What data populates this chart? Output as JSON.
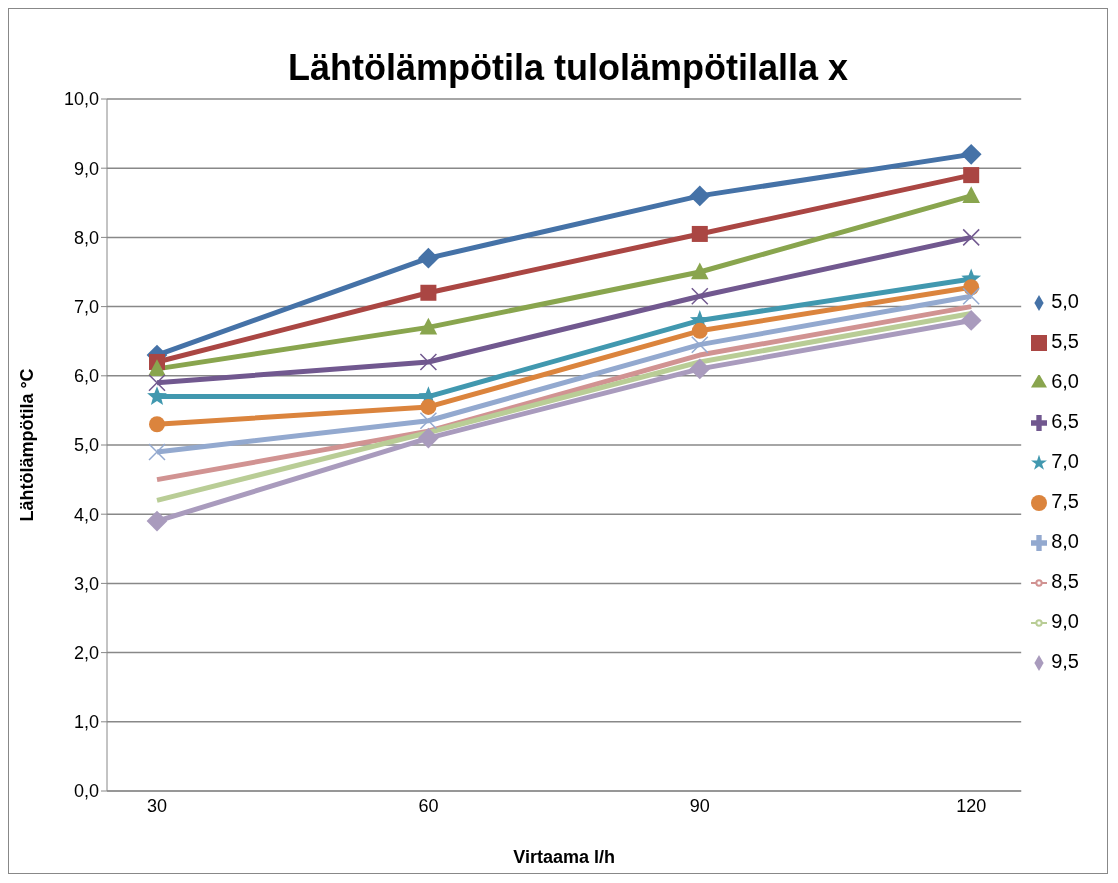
{
  "chart_data": {
    "type": "line",
    "title": "Lähtölämpötila tulolämpötilalla x",
    "xlabel": "Virtaama l/h",
    "ylabel": "Lähtölämpötila °C",
    "categories": [
      "30",
      "60",
      "90",
      "120"
    ],
    "series": [
      {
        "name": "5,0",
        "color": "#4572a7",
        "marker": "diamond",
        "values": [
          6.3,
          7.7,
          8.6,
          9.2
        ]
      },
      {
        "name": "5,5",
        "color": "#aa4643",
        "marker": "square",
        "values": [
          6.2,
          7.2,
          8.05,
          8.9
        ]
      },
      {
        "name": "6,0",
        "color": "#89a54e",
        "marker": "triangle",
        "values": [
          6.1,
          6.7,
          7.5,
          8.6
        ]
      },
      {
        "name": "6,5",
        "color": "#71588f",
        "marker": "cross",
        "values": [
          5.9,
          6.2,
          7.15,
          8.0
        ]
      },
      {
        "name": "7,0",
        "color": "#4198af",
        "marker": "star",
        "values": [
          5.7,
          5.7,
          6.8,
          7.4
        ]
      },
      {
        "name": "7,5",
        "color": "#db843d",
        "marker": "circle",
        "values": [
          5.3,
          5.55,
          6.65,
          7.28
        ]
      },
      {
        "name": "8,0",
        "color": "#93a9cf",
        "marker": "cross",
        "values": [
          4.9,
          5.35,
          6.45,
          7.15
        ]
      },
      {
        "name": "8,5",
        "color": "#d19392",
        "marker": "none",
        "values": [
          4.5,
          5.2,
          6.3,
          7.0
        ]
      },
      {
        "name": "9,0",
        "color": "#b9cd96",
        "marker": "none",
        "values": [
          4.2,
          5.18,
          6.2,
          6.9
        ]
      },
      {
        "name": "9,5",
        "color": "#a99bbd",
        "marker": "diamond",
        "values": [
          3.9,
          5.1,
          6.1,
          6.8
        ]
      }
    ],
    "ylim": [
      0,
      10
    ],
    "yticks": [
      {
        "value": 0,
        "label": "0,0"
      },
      {
        "value": 1,
        "label": "1,0"
      },
      {
        "value": 2,
        "label": "2,0"
      },
      {
        "value": 3,
        "label": "3,0"
      },
      {
        "value": 4,
        "label": "4,0"
      },
      {
        "value": 5,
        "label": "5,0"
      },
      {
        "value": 6,
        "label": "6,0"
      },
      {
        "value": 7,
        "label": "7,0"
      },
      {
        "value": 8,
        "label": "8,0"
      },
      {
        "value": 9,
        "label": "9,0"
      },
      {
        "value": 10,
        "label": "10,0"
      }
    ],
    "grid": "y",
    "legend": "right",
    "line_style": "solid"
  }
}
